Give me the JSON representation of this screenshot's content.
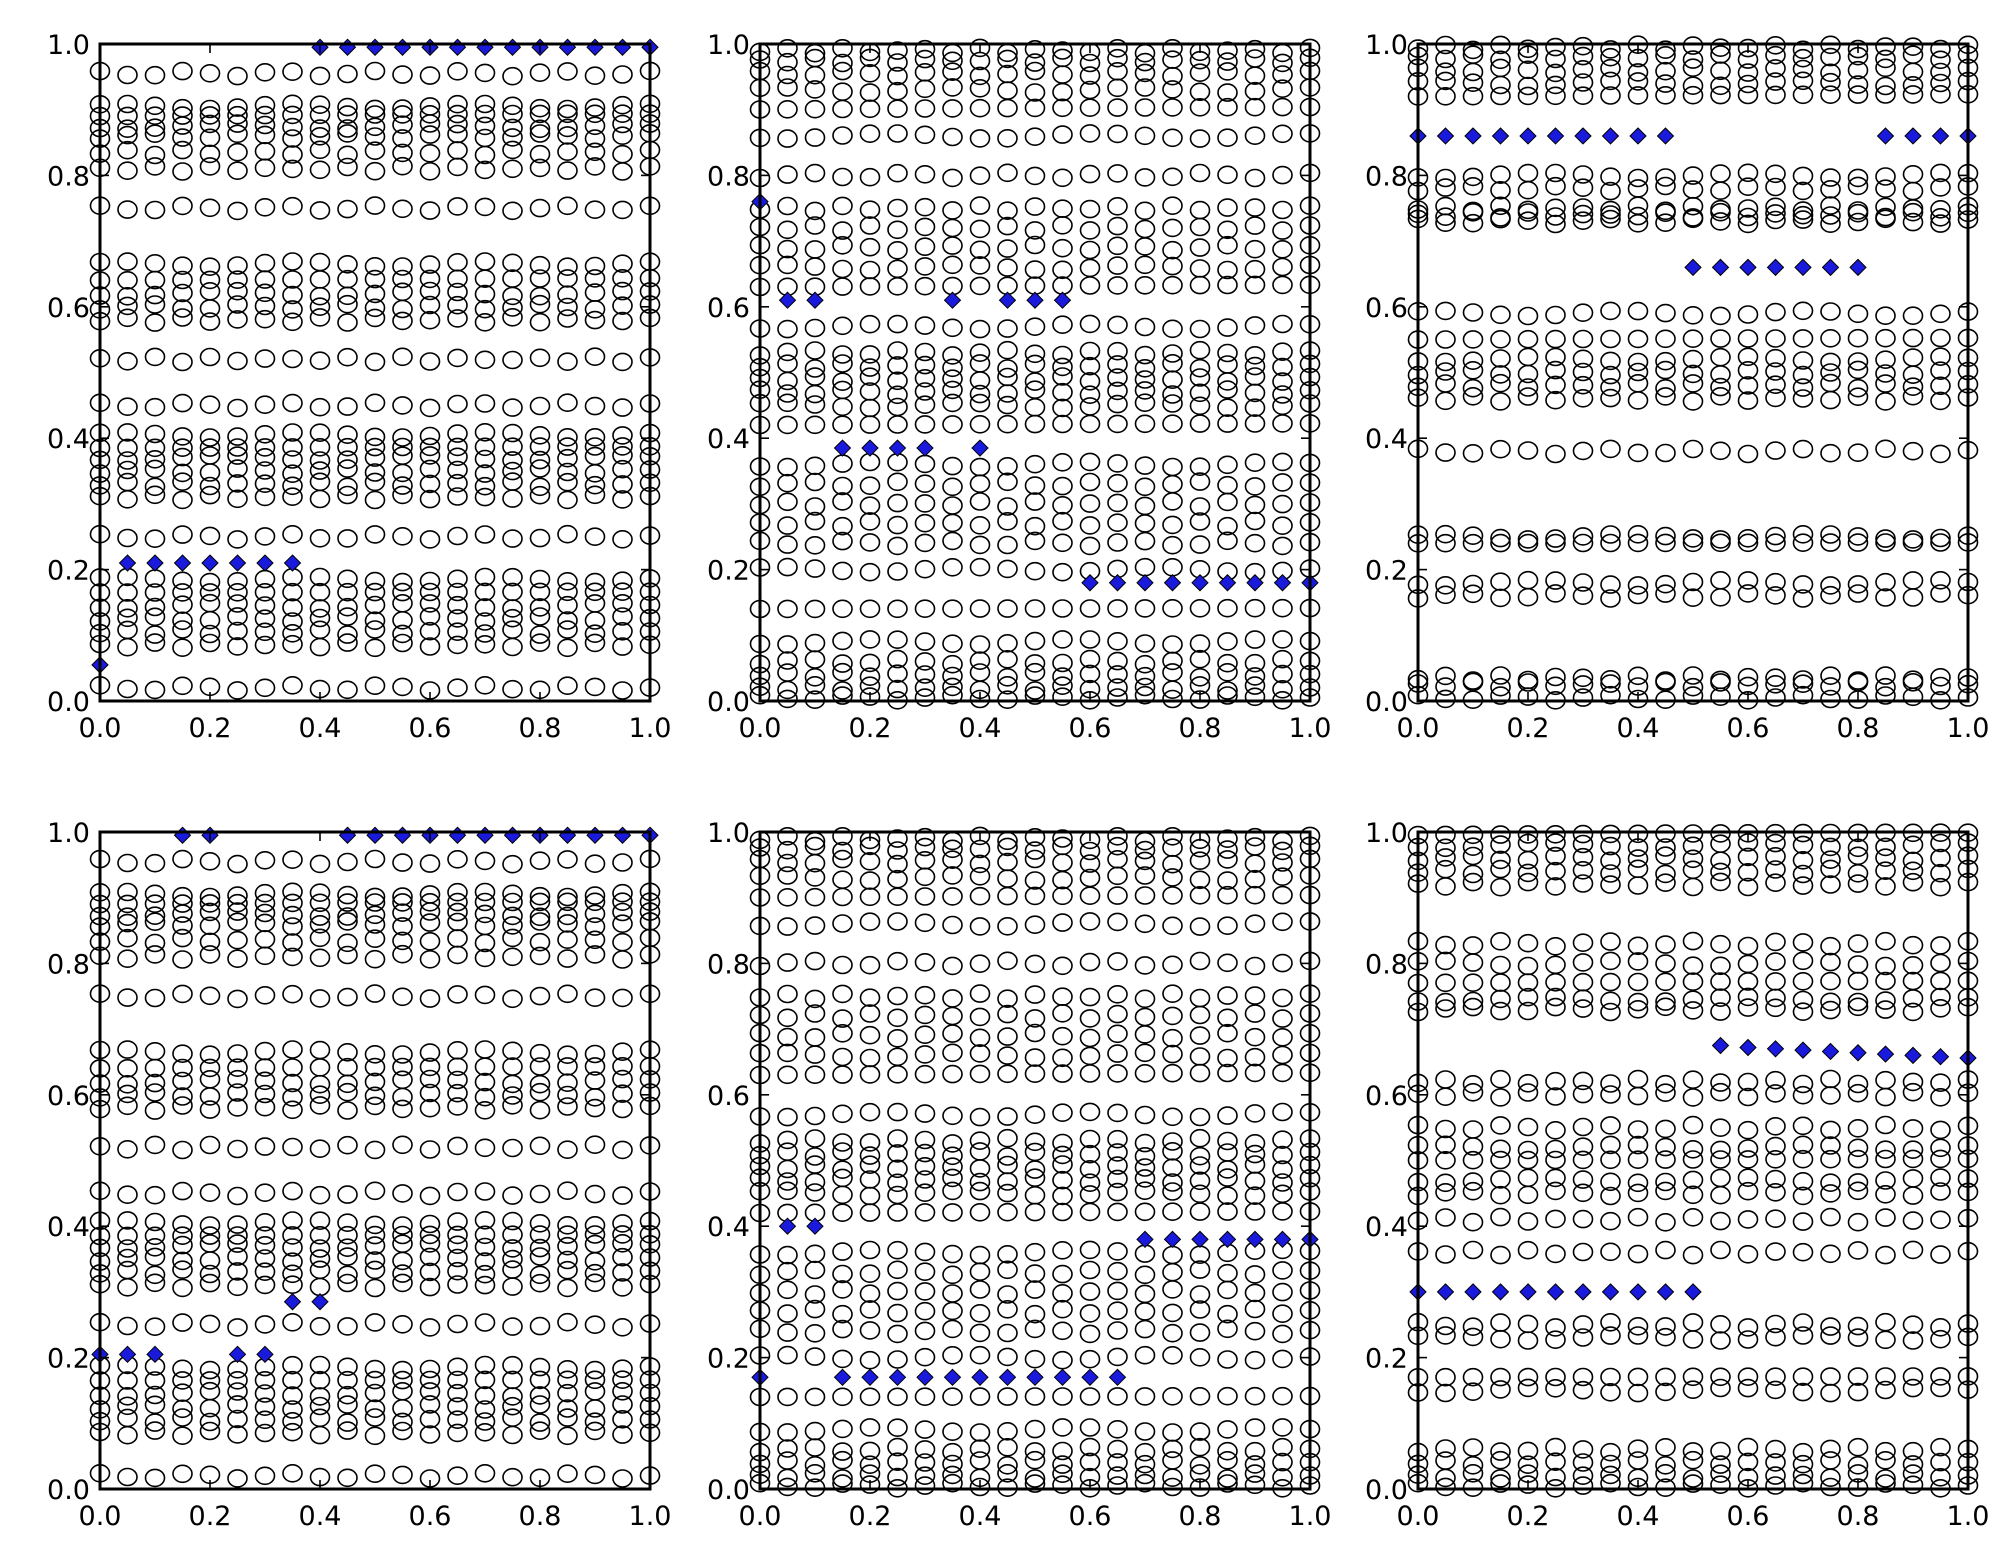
{
  "chart_data": [
    {
      "type": "scatter",
      "panel": "top-left",
      "xlim": [
        0,
        1
      ],
      "ylim": [
        0,
        1
      ],
      "xticks": [
        "0.0",
        "0.2",
        "0.4",
        "0.6",
        "0.8",
        "1.0"
      ],
      "yticks": [
        "0.0",
        "0.2",
        "0.4",
        "0.6",
        "0.8",
        "1.0"
      ],
      "circle_x": [
        0.0,
        0.05,
        0.1,
        0.15,
        0.2,
        0.25,
        0.3,
        0.35,
        0.4,
        0.45,
        0.5,
        0.55,
        0.6,
        0.65,
        0.7,
        0.75,
        0.8,
        0.85,
        0.9,
        0.95,
        1.0
      ],
      "circle_y_levels": [
        0.02,
        0.085,
        0.105,
        0.125,
        0.145,
        0.165,
        0.185,
        0.25,
        0.31,
        0.33,
        0.35,
        0.37,
        0.385,
        0.405,
        0.45,
        0.52,
        0.58,
        0.6,
        0.62,
        0.64,
        0.665,
        0.75,
        0.81,
        0.835,
        0.86,
        0.875,
        0.89,
        0.905,
        0.955
      ],
      "diamonds": [
        {
          "x": 0.0,
          "y": 0.055
        },
        {
          "x": 0.05,
          "y": 0.21
        },
        {
          "x": 0.1,
          "y": 0.21
        },
        {
          "x": 0.15,
          "y": 0.21
        },
        {
          "x": 0.2,
          "y": 0.21
        },
        {
          "x": 0.25,
          "y": 0.21
        },
        {
          "x": 0.3,
          "y": 0.21
        },
        {
          "x": 0.35,
          "y": 0.21
        },
        {
          "x": 0.4,
          "y": 0.995
        },
        {
          "x": 0.45,
          "y": 0.995
        },
        {
          "x": 0.5,
          "y": 0.995
        },
        {
          "x": 0.55,
          "y": 0.995
        },
        {
          "x": 0.6,
          "y": 0.995
        },
        {
          "x": 0.65,
          "y": 0.995
        },
        {
          "x": 0.7,
          "y": 0.995
        },
        {
          "x": 0.75,
          "y": 0.995
        },
        {
          "x": 0.8,
          "y": 0.995
        },
        {
          "x": 0.85,
          "y": 0.995
        },
        {
          "x": 0.9,
          "y": 0.995
        },
        {
          "x": 0.95,
          "y": 0.995
        },
        {
          "x": 1.0,
          "y": 0.995
        }
      ]
    },
    {
      "type": "scatter",
      "panel": "top-middle",
      "xlim": [
        0,
        1
      ],
      "ylim": [
        0,
        1
      ],
      "xticks": [
        "0.0",
        "0.2",
        "0.4",
        "0.6",
        "0.8",
        "1.0"
      ],
      "yticks": [
        "0.0",
        "0.2",
        "0.4",
        "0.6",
        "0.8",
        "1.0"
      ],
      "circle_x": [
        0.0,
        0.05,
        0.1,
        0.15,
        0.2,
        0.25,
        0.3,
        0.35,
        0.4,
        0.45,
        0.5,
        0.55,
        0.6,
        0.65,
        0.7,
        0.75,
        0.8,
        0.85,
        0.9,
        0.95,
        1.0
      ],
      "circle_y_levels": [
        0.005,
        0.02,
        0.04,
        0.06,
        0.09,
        0.14,
        0.2,
        0.24,
        0.27,
        0.3,
        0.33,
        0.36,
        0.42,
        0.45,
        0.47,
        0.49,
        0.51,
        0.53,
        0.57,
        0.63,
        0.66,
        0.69,
        0.72,
        0.75,
        0.8,
        0.86,
        0.9,
        0.93,
        0.955,
        0.975,
        0.99
      ],
      "diamonds": [
        {
          "x": 0.0,
          "y": 0.76
        },
        {
          "x": 0.05,
          "y": 0.61
        },
        {
          "x": 0.1,
          "y": 0.61
        },
        {
          "x": 0.15,
          "y": 0.385
        },
        {
          "x": 0.2,
          "y": 0.385
        },
        {
          "x": 0.25,
          "y": 0.385
        },
        {
          "x": 0.3,
          "y": 0.385
        },
        {
          "x": 0.35,
          "y": 0.61
        },
        {
          "x": 0.4,
          "y": 0.385
        },
        {
          "x": 0.45,
          "y": 0.61
        },
        {
          "x": 0.5,
          "y": 0.61
        },
        {
          "x": 0.55,
          "y": 0.61
        },
        {
          "x": 0.6,
          "y": 0.18
        },
        {
          "x": 0.65,
          "y": 0.18
        },
        {
          "x": 0.7,
          "y": 0.18
        },
        {
          "x": 0.75,
          "y": 0.18
        },
        {
          "x": 0.8,
          "y": 0.18
        },
        {
          "x": 0.85,
          "y": 0.18
        },
        {
          "x": 0.9,
          "y": 0.18
        },
        {
          "x": 0.95,
          "y": 0.18
        },
        {
          "x": 1.0,
          "y": 0.18
        }
      ]
    },
    {
      "type": "scatter",
      "panel": "top-right",
      "xlim": [
        0,
        1
      ],
      "ylim": [
        0,
        1
      ],
      "xticks": [
        "0.0",
        "0.2",
        "0.4",
        "0.6",
        "0.8",
        "1.0"
      ],
      "yticks": [
        "0.0",
        "0.2",
        "0.4",
        "0.6",
        "0.8",
        "1.0"
      ],
      "circle_x": [
        0.0,
        0.05,
        0.1,
        0.15,
        0.2,
        0.25,
        0.3,
        0.35,
        0.4,
        0.45,
        0.5,
        0.55,
        0.6,
        0.65,
        0.7,
        0.75,
        0.8,
        0.85,
        0.9,
        0.95,
        1.0
      ],
      "circle_y_levels": [
        0.005,
        0.025,
        0.035,
        0.16,
        0.18,
        0.24,
        0.25,
        0.38,
        0.46,
        0.48,
        0.5,
        0.52,
        0.55,
        0.59,
        0.73,
        0.74,
        0.75,
        0.78,
        0.8,
        0.92,
        0.94,
        0.96,
        0.98,
        0.995
      ],
      "diamonds": [
        {
          "x": 0.0,
          "y": 0.86
        },
        {
          "x": 0.05,
          "y": 0.86
        },
        {
          "x": 0.1,
          "y": 0.86
        },
        {
          "x": 0.15,
          "y": 0.86
        },
        {
          "x": 0.2,
          "y": 0.86
        },
        {
          "x": 0.25,
          "y": 0.86
        },
        {
          "x": 0.3,
          "y": 0.86
        },
        {
          "x": 0.35,
          "y": 0.86
        },
        {
          "x": 0.4,
          "y": 0.86
        },
        {
          "x": 0.45,
          "y": 0.86
        },
        {
          "x": 0.5,
          "y": 0.66
        },
        {
          "x": 0.55,
          "y": 0.66
        },
        {
          "x": 0.6,
          "y": 0.66
        },
        {
          "x": 0.65,
          "y": 0.66
        },
        {
          "x": 0.7,
          "y": 0.66
        },
        {
          "x": 0.75,
          "y": 0.66
        },
        {
          "x": 0.8,
          "y": 0.66
        },
        {
          "x": 0.85,
          "y": 0.86
        },
        {
          "x": 0.9,
          "y": 0.86
        },
        {
          "x": 0.95,
          "y": 0.86
        },
        {
          "x": 1.0,
          "y": 0.86
        }
      ]
    },
    {
      "type": "scatter",
      "panel": "bottom-left",
      "xlim": [
        0,
        1
      ],
      "ylim": [
        0,
        1
      ],
      "xticks": [
        "0.0",
        "0.2",
        "0.4",
        "0.6",
        "0.8",
        "1.0"
      ],
      "yticks": [
        "0.0",
        "0.2",
        "0.4",
        "0.6",
        "0.8",
        "1.0"
      ],
      "circle_x": [
        0.0,
        0.05,
        0.1,
        0.15,
        0.2,
        0.25,
        0.3,
        0.35,
        0.4,
        0.45,
        0.5,
        0.55,
        0.6,
        0.65,
        0.7,
        0.75,
        0.8,
        0.85,
        0.9,
        0.95,
        1.0
      ],
      "circle_y_levels": [
        0.02,
        0.085,
        0.105,
        0.125,
        0.145,
        0.165,
        0.185,
        0.25,
        0.31,
        0.33,
        0.35,
        0.37,
        0.385,
        0.405,
        0.45,
        0.52,
        0.58,
        0.6,
        0.62,
        0.64,
        0.665,
        0.75,
        0.81,
        0.835,
        0.86,
        0.875,
        0.89,
        0.905,
        0.955
      ],
      "diamonds": [
        {
          "x": 0.0,
          "y": 0.205
        },
        {
          "x": 0.05,
          "y": 0.205
        },
        {
          "x": 0.1,
          "y": 0.205
        },
        {
          "x": 0.15,
          "y": 0.995
        },
        {
          "x": 0.2,
          "y": 0.995
        },
        {
          "x": 0.25,
          "y": 0.205
        },
        {
          "x": 0.3,
          "y": 0.205
        },
        {
          "x": 0.35,
          "y": 0.285
        },
        {
          "x": 0.4,
          "y": 0.285
        },
        {
          "x": 0.45,
          "y": 0.995
        },
        {
          "x": 0.5,
          "y": 0.995
        },
        {
          "x": 0.55,
          "y": 0.995
        },
        {
          "x": 0.6,
          "y": 0.995
        },
        {
          "x": 0.65,
          "y": 0.995
        },
        {
          "x": 0.7,
          "y": 0.995
        },
        {
          "x": 0.75,
          "y": 0.995
        },
        {
          "x": 0.8,
          "y": 0.995
        },
        {
          "x": 0.85,
          "y": 0.995
        },
        {
          "x": 0.9,
          "y": 0.995
        },
        {
          "x": 0.95,
          "y": 0.995
        },
        {
          "x": 1.0,
          "y": 0.995
        }
      ]
    },
    {
      "type": "scatter",
      "panel": "bottom-middle",
      "xlim": [
        0,
        1
      ],
      "ylim": [
        0,
        1
      ],
      "xticks": [
        "0.0",
        "0.2",
        "0.4",
        "0.6",
        "0.8",
        "1.0"
      ],
      "yticks": [
        "0.0",
        "0.2",
        "0.4",
        "0.6",
        "0.8",
        "1.0"
      ],
      "circle_x": [
        0.0,
        0.05,
        0.1,
        0.15,
        0.2,
        0.25,
        0.3,
        0.35,
        0.4,
        0.45,
        0.5,
        0.55,
        0.6,
        0.65,
        0.7,
        0.75,
        0.8,
        0.85,
        0.9,
        0.95,
        1.0
      ],
      "circle_y_levels": [
        0.005,
        0.02,
        0.04,
        0.06,
        0.09,
        0.14,
        0.2,
        0.24,
        0.27,
        0.3,
        0.33,
        0.36,
        0.42,
        0.45,
        0.47,
        0.49,
        0.51,
        0.53,
        0.57,
        0.63,
        0.66,
        0.69,
        0.72,
        0.75,
        0.8,
        0.86,
        0.9,
        0.93,
        0.955,
        0.975,
        0.99
      ],
      "diamonds": [
        {
          "x": 0.0,
          "y": 0.17
        },
        {
          "x": 0.05,
          "y": 0.4
        },
        {
          "x": 0.1,
          "y": 0.4
        },
        {
          "x": 0.15,
          "y": 0.17
        },
        {
          "x": 0.2,
          "y": 0.17
        },
        {
          "x": 0.25,
          "y": 0.17
        },
        {
          "x": 0.3,
          "y": 0.17
        },
        {
          "x": 0.35,
          "y": 0.17
        },
        {
          "x": 0.4,
          "y": 0.17
        },
        {
          "x": 0.45,
          "y": 0.17
        },
        {
          "x": 0.5,
          "y": 0.17
        },
        {
          "x": 0.55,
          "y": 0.17
        },
        {
          "x": 0.6,
          "y": 0.17
        },
        {
          "x": 0.65,
          "y": 0.17
        },
        {
          "x": 0.7,
          "y": 0.38
        },
        {
          "x": 0.75,
          "y": 0.38
        },
        {
          "x": 0.8,
          "y": 0.38
        },
        {
          "x": 0.85,
          "y": 0.38
        },
        {
          "x": 0.9,
          "y": 0.38
        },
        {
          "x": 0.95,
          "y": 0.38
        },
        {
          "x": 1.0,
          "y": 0.38
        }
      ]
    },
    {
      "type": "scatter",
      "panel": "bottom-right",
      "xlim": [
        0,
        1
      ],
      "ylim": [
        0,
        1
      ],
      "xticks": [
        "0.0",
        "0.2",
        "0.4",
        "0.6",
        "0.8",
        "1.0"
      ],
      "yticks": [
        "0.0",
        "0.2",
        "0.4",
        "0.6",
        "0.8",
        "1.0"
      ],
      "circle_x": [
        0.0,
        0.05,
        0.1,
        0.15,
        0.2,
        0.25,
        0.3,
        0.35,
        0.4,
        0.45,
        0.5,
        0.55,
        0.6,
        0.65,
        0.7,
        0.75,
        0.8,
        0.85,
        0.9,
        0.95,
        1.0
      ],
      "circle_y_levels": [
        0.005,
        0.02,
        0.04,
        0.06,
        0.15,
        0.17,
        0.23,
        0.25,
        0.36,
        0.41,
        0.45,
        0.47,
        0.5,
        0.52,
        0.55,
        0.6,
        0.62,
        0.73,
        0.745,
        0.77,
        0.8,
        0.83,
        0.92,
        0.94,
        0.96,
        0.98,
        0.995
      ],
      "diamonds": [
        {
          "x": 0.0,
          "y": 0.3
        },
        {
          "x": 0.05,
          "y": 0.3
        },
        {
          "x": 0.1,
          "y": 0.3
        },
        {
          "x": 0.15,
          "y": 0.3
        },
        {
          "x": 0.2,
          "y": 0.3
        },
        {
          "x": 0.25,
          "y": 0.3
        },
        {
          "x": 0.3,
          "y": 0.3
        },
        {
          "x": 0.35,
          "y": 0.3
        },
        {
          "x": 0.4,
          "y": 0.3
        },
        {
          "x": 0.45,
          "y": 0.3
        },
        {
          "x": 0.5,
          "y": 0.3
        },
        {
          "x": 0.55,
          "y": 0.675
        },
        {
          "x": 0.6,
          "y": 0.672
        },
        {
          "x": 0.65,
          "y": 0.67
        },
        {
          "x": 0.7,
          "y": 0.668
        },
        {
          "x": 0.75,
          "y": 0.666
        },
        {
          "x": 0.8,
          "y": 0.664
        },
        {
          "x": 0.85,
          "y": 0.662
        },
        {
          "x": 0.9,
          "y": 0.66
        },
        {
          "x": 0.95,
          "y": 0.658
        },
        {
          "x": 1.0,
          "y": 0.656
        }
      ]
    }
  ],
  "colors": {
    "diamond_fill": "#1a1adc",
    "circle_stroke": "#000000",
    "frame": "#000000"
  }
}
